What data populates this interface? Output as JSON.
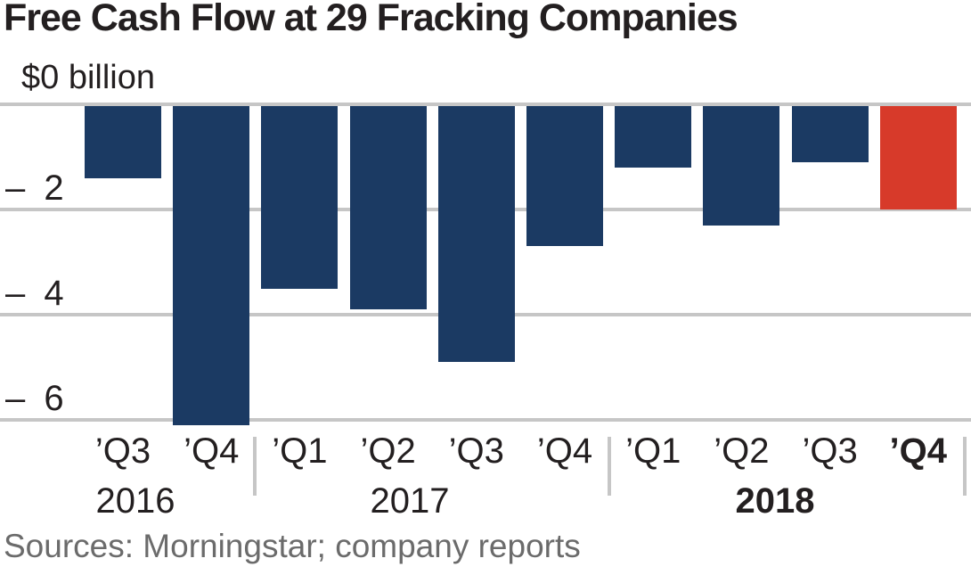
{
  "title": "Free Cash Flow at 29 Fracking Companies",
  "y_axis": {
    "zero_label": "$0 billion",
    "tick_labels": [
      "– 2",
      "– 4",
      "– 6"
    ],
    "tick_values": [
      -2,
      -4,
      -6
    ]
  },
  "x_axis": {
    "quarter_labels": [
      "’Q3",
      "’Q4",
      "’Q1",
      "’Q2",
      "’Q3",
      "’Q4",
      "’Q1",
      "’Q2",
      "’Q3",
      "’Q4"
    ],
    "bold_quarter_index": 9,
    "year_labels": [
      {
        "label": "2016",
        "bold": false
      },
      {
        "label": "2017",
        "bold": false
      },
      {
        "label": "2018",
        "bold": true
      }
    ]
  },
  "source": "Sources: Morningstar; company reports",
  "colors": {
    "bar": "#1b3a63",
    "highlight_bar": "#d73a2a",
    "gridline": "#c6c6c6",
    "text": "#231f20",
    "source_text": "#6b6b6b"
  },
  "chart_data": {
    "type": "bar",
    "title": "Free Cash Flow at 29 Fracking Companies",
    "categories": [
      "Q3 2016",
      "Q4 2016",
      "Q1 2017",
      "Q2 2017",
      "Q3 2017",
      "Q4 2017",
      "Q1 2018",
      "Q2 2018",
      "Q3 2018",
      "Q4 2018"
    ],
    "values": [
      -1.4,
      -6.1,
      -3.5,
      -3.9,
      -4.9,
      -2.7,
      -1.2,
      -2.3,
      -1.1,
      -2.0
    ],
    "highlighted_category": "Q4 2018",
    "xlabel": "",
    "ylabel": "$ billion",
    "ylim": [
      -6.2,
      0
    ],
    "yticks": [
      0,
      -2,
      -4,
      -6
    ],
    "grid": true,
    "legend": false
  }
}
